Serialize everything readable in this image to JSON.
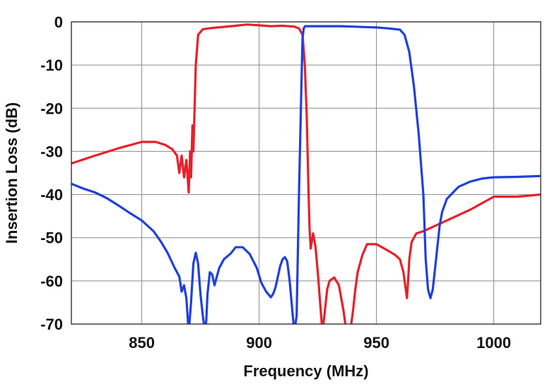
{
  "chart_data": {
    "type": "line",
    "title": "",
    "xlabel": "Frequency (MHz)",
    "ylabel": "Insertion Loss  (dB)",
    "xlim": [
      820,
      1020
    ],
    "ylim": [
      -70,
      0
    ],
    "x_ticks": [
      850,
      900,
      950,
      1000
    ],
    "x_tick_labels": [
      "850",
      "900",
      "950",
      "1000"
    ],
    "y_ticks": [
      0,
      -10,
      -20,
      -30,
      -40,
      -50,
      -60,
      -70
    ],
    "y_tick_labels": [
      "0",
      "-10",
      "-20",
      "-30",
      "-40",
      "-50",
      "-60",
      "-70"
    ],
    "grid": true,
    "legend": "none",
    "series": [
      {
        "color": "#e8202a",
        "x": [
          820,
          830,
          840,
          850,
          856,
          860,
          863,
          865,
          866,
          867,
          868,
          869,
          870,
          870.6,
          871,
          871.6,
          872,
          873,
          874,
          876,
          880,
          890,
          895,
          900,
          905,
          910,
          915,
          917,
          918.5,
          919.5,
          920.3,
          921,
          921.5,
          922,
          923,
          924,
          925,
          926,
          927,
          928,
          929,
          930,
          932,
          934,
          935,
          936,
          937,
          938,
          939,
          940,
          941,
          942,
          944,
          946,
          950,
          955,
          958,
          960,
          961.5,
          962.5,
          963,
          963.5,
          964,
          965,
          967,
          970,
          980,
          990,
          1000,
          1010,
          1020
        ],
        "y": [
          -32.8,
          -31,
          -29.3,
          -27.8,
          -27.8,
          -28.5,
          -29.5,
          -31,
          -35,
          -31,
          -36,
          -32,
          -39.5,
          -30,
          -36,
          -24,
          -30,
          -10,
          -3,
          -1.7,
          -1.4,
          -0.9,
          -0.6,
          -0.8,
          -1,
          -0.9,
          -1.1,
          -1.5,
          -3,
          -10,
          -22,
          -38,
          -48,
          -52.5,
          -49,
          -52,
          -58,
          -65,
          -72,
          -67,
          -62,
          -60,
          -59.2,
          -61,
          -64,
          -67,
          -71,
          -72,
          -71,
          -67,
          -62,
          -58,
          -54,
          -51.5,
          -51.5,
          -53,
          -54,
          -55,
          -58,
          -62,
          -64,
          -60,
          -55,
          -51,
          -49,
          -48.5,
          -46,
          -43.5,
          -40.5,
          -40.5,
          -40
        ]
      },
      {
        "color": "#1f3fe0",
        "x": [
          820,
          825,
          830,
          835,
          840,
          845,
          850,
          855,
          858,
          861,
          864,
          866,
          867,
          868,
          869,
          870,
          871,
          872,
          873,
          874,
          875,
          876,
          877,
          877.5,
          878,
          879,
          880,
          881,
          882,
          883,
          885,
          888,
          890,
          893,
          896,
          899,
          901,
          903,
          905,
          906,
          907,
          908,
          909,
          910,
          911,
          912,
          913,
          914,
          915,
          916,
          917,
          918,
          918.5,
          919,
          919.6,
          920.3,
          921,
          922,
          923,
          925,
          930,
          935,
          940,
          945,
          950,
          955,
          960,
          962,
          964,
          966,
          968,
          970,
          971,
          972,
          973,
          974,
          975,
          976,
          977,
          978,
          980,
          985,
          990,
          995,
          1000,
          1010,
          1020
        ],
        "y": [
          -37.5,
          -38.6,
          -39.5,
          -40.8,
          -42.5,
          -44.3,
          -46,
          -48.5,
          -50.8,
          -53.5,
          -57,
          -59,
          -62.5,
          -61,
          -64,
          -72,
          -65,
          -56,
          -53.5,
          -56,
          -63,
          -68,
          -72,
          -69,
          -63,
          -58,
          -58.5,
          -61,
          -59,
          -57,
          -55,
          -53.6,
          -52.2,
          -52.2,
          -53.8,
          -57,
          -60.5,
          -62.5,
          -63.8,
          -63,
          -61.5,
          -59,
          -56.5,
          -55,
          -54.5,
          -55.5,
          -60,
          -66,
          -72,
          -68,
          -40,
          -15,
          -4,
          -1.5,
          -1,
          -1,
          -1,
          -1,
          -1,
          -1,
          -1,
          -1,
          -1.1,
          -1.2,
          -1.3,
          -1.5,
          -1.8,
          -3,
          -7,
          -15,
          -26,
          -40,
          -55,
          -62,
          -64,
          -62,
          -57,
          -52,
          -47,
          -44,
          -41,
          -38.2,
          -37,
          -36.3,
          -36,
          -35.9,
          -35.7
        ]
      }
    ]
  }
}
